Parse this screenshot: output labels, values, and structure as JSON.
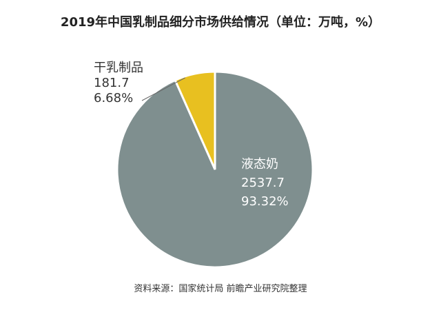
{
  "chart_data": {
    "type": "pie",
    "title": "2019年中国乳制品细分市场供给情况（单位：万吨，%）",
    "slices": [
      {
        "label": "液态奶",
        "value": 2537.7,
        "value_text": "2537.7",
        "percent": 93.32,
        "percent_text": "93.32%",
        "color": "#7f8f8f",
        "label_color": "#ffffff"
      },
      {
        "label": "干乳制品",
        "value": 181.7,
        "value_text": "181.7",
        "percent": 6.68,
        "percent_text": "6.68%",
        "color": "#e8c020",
        "label_color": "#333333"
      }
    ],
    "source": "资料来源：国家统计局 前瞻产业研究院整理"
  },
  "colors": {
    "leader_line": "#666666",
    "slice_border": "#ffffff"
  }
}
